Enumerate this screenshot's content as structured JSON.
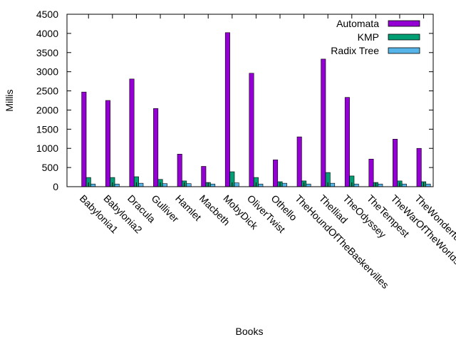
{
  "chart_data": {
    "type": "bar",
    "xlabel": "Books",
    "ylabel": "Millis",
    "ylim": [
      0,
      4500
    ],
    "yticks": [
      0,
      500,
      1000,
      1500,
      2000,
      2500,
      3000,
      3500,
      4000,
      4500
    ],
    "grid": false,
    "legend_position": "top-right",
    "categories": [
      "Babylonia1",
      "Babylonia2",
      "Dracula",
      "Gulliver",
      "Hamlet",
      "Macbeth",
      "MobyDick",
      "OliverTwist",
      "Othello",
      "TheHoundOfTheBaskervilles",
      "TheIliad",
      "TheOdyssey",
      "TheTempest",
      "TheWarOfTheWorlds",
      "TheWonderfulWizardOfOz"
    ],
    "series": [
      {
        "name": "Automata",
        "color": "#9400d3",
        "values": [
          2470,
          2250,
          2810,
          2040,
          850,
          530,
          4020,
          2960,
          700,
          1300,
          3330,
          2330,
          720,
          1240,
          1000
        ]
      },
      {
        "name": "KMP",
        "color": "#009e73",
        "values": [
          240,
          240,
          260,
          190,
          150,
          110,
          390,
          240,
          130,
          150,
          370,
          280,
          110,
          150,
          130
        ]
      },
      {
        "name": "Radix Tree",
        "color": "#56b4e9",
        "values": [
          70,
          70,
          90,
          80,
          80,
          70,
          100,
          70,
          90,
          70,
          90,
          70,
          70,
          70,
          70
        ]
      }
    ]
  }
}
